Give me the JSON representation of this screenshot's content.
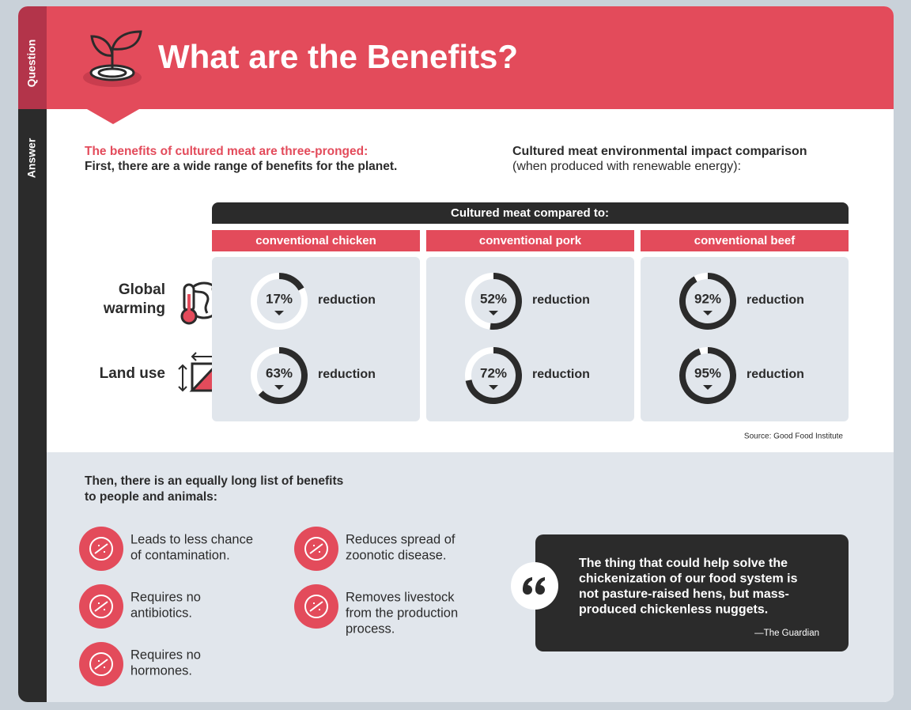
{
  "sidebar": {
    "question": "Question",
    "answer": "Answer"
  },
  "header": {
    "title": "What are the Benefits?"
  },
  "intro": {
    "highlight": "The benefits of cultured meat are three-pronged:",
    "text": "First, there are a wide range of benefits for the planet."
  },
  "comparison": {
    "title": "Cultured meat environmental impact comparison",
    "subtitle": "(when produced with renewable energy):",
    "banner": "Cultured meat compared to:",
    "columns": [
      "conventional chicken",
      "conventional pork",
      "conventional beef"
    ],
    "unit_text": "reduction",
    "rows": [
      {
        "label_lines": [
          "Global",
          "warming"
        ],
        "values": [
          17,
          52,
          92
        ],
        "value_labels": [
          "17%",
          "52%",
          "92%"
        ]
      },
      {
        "label_lines": [
          "Land use"
        ],
        "values": [
          63,
          72,
          95
        ],
        "value_labels": [
          "63%",
          "72%",
          "95%"
        ]
      }
    ],
    "source": "Source: Good Food Institute"
  },
  "people": {
    "heading_lines": [
      "Then, there is an equally long list of benefits",
      "to people and animals:"
    ],
    "items": [
      {
        "lines": [
          "Leads to less chance",
          "of contamination."
        ]
      },
      {
        "lines": [
          "Requires no",
          "antibiotics."
        ]
      },
      {
        "lines": [
          "Requires no",
          "hormones."
        ]
      },
      {
        "lines": [
          "Reduces spread of",
          "zoonotic disease."
        ]
      },
      {
        "lines": [
          "Removes livestock",
          "from the production",
          "process."
        ]
      }
    ]
  },
  "quote": {
    "lines": [
      "The thing that could help solve the",
      "chickenization of our food system is",
      "not pasture-raised hens, but mass-",
      "produced chickenless nuggets."
    ],
    "attribution": "—The Guardian"
  }
}
